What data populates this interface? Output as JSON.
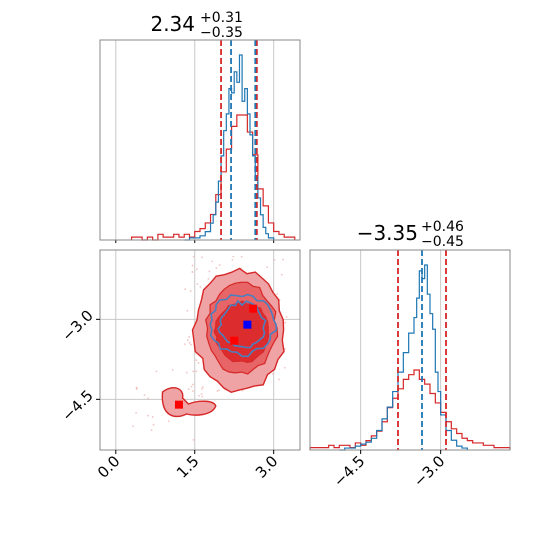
{
  "chart_data": [
    {
      "type": "histogram",
      "panel": "marginal-x",
      "title": {
        "value": "2.34",
        "plus": "+0.31",
        "minus": "−0.35"
      },
      "xlim": [
        -0.3,
        3.5
      ],
      "grid": true,
      "quantile_lines": {
        "blue": [
          2.19,
          2.65
        ],
        "red": [
          2.0,
          2.68
        ]
      },
      "series": [
        {
          "color": "#1f77b4",
          "bin_edges": [
            1.3,
            1.4,
            1.5,
            1.6,
            1.7,
            1.8,
            1.85,
            1.9,
            1.95,
            2.0,
            2.05,
            2.1,
            2.15,
            2.2,
            2.25,
            2.3,
            2.35,
            2.4,
            2.45,
            2.5,
            2.55,
            2.6,
            2.65,
            2.7,
            2.75,
            2.8,
            2.85,
            2.9,
            3.0
          ],
          "counts": [
            0,
            1,
            1,
            2,
            4,
            8,
            12,
            18,
            28,
            40,
            52,
            60,
            72,
            70,
            80,
            75,
            88,
            66,
            72,
            60,
            50,
            40,
            30,
            20,
            12,
            6,
            3,
            1
          ]
        },
        {
          "color": "#d62728",
          "bin_edges": [
            0.3,
            0.4,
            0.5,
            0.6,
            0.7,
            0.8,
            0.9,
            1.0,
            1.1,
            1.2,
            1.3,
            1.4,
            1.5,
            1.6,
            1.7,
            1.8,
            1.9,
            2.0,
            2.1,
            2.2,
            2.3,
            2.4,
            2.5,
            2.6,
            2.7,
            2.8,
            2.9,
            3.0,
            3.1,
            3.2,
            3.3,
            3.4
          ],
          "counts": [
            1,
            1,
            0,
            1,
            0,
            2,
            1,
            1,
            2,
            1,
            2,
            1,
            3,
            4,
            6,
            9,
            16,
            24,
            32,
            40,
            44,
            44,
            38,
            30,
            18,
            12,
            6,
            3,
            2,
            1,
            1
          ]
        }
      ]
    },
    {
      "type": "contour",
      "panel": "joint",
      "xlim": [
        -0.3,
        3.5
      ],
      "ylim": [
        -5.45,
        -1.7
      ],
      "xticks": [
        "0.0",
        "1.5",
        "3.0"
      ],
      "yticks": [
        "−3.0",
        "−4.5"
      ],
      "xtick_values": [
        0.0,
        1.5,
        3.0
      ],
      "ytick_values": [
        -3.0,
        -4.5
      ],
      "grid": true,
      "red_contour_levels": 3,
      "red_secondary_blob": {
        "x": [
          0.85,
          1.9
        ],
        "y": [
          -4.85,
          -4.25
        ]
      },
      "blue_contour_levels": 2,
      "points": [
        {
          "x": 2.5,
          "y": -3.1,
          "color": "#0000ff",
          "marker": "square"
        },
        {
          "x": 2.61,
          "y": -2.8,
          "color": "#ff0000",
          "marker": "square"
        },
        {
          "x": 2.25,
          "y": -3.4,
          "color": "#ff0000",
          "marker": "square"
        },
        {
          "x": 1.2,
          "y": -4.6,
          "color": "#ff0000",
          "marker": "square"
        }
      ]
    },
    {
      "type": "histogram",
      "panel": "marginal-y",
      "title": {
        "value": "−3.35",
        "plus": "+0.46",
        "minus": "−0.45"
      },
      "xlim": [
        -5.45,
        -1.7
      ],
      "xticks": [
        "−4.5",
        "−3.0"
      ],
      "xtick_values": [
        -4.5,
        -3.0
      ],
      "grid": true,
      "quantile_lines": {
        "blue": [
          -3.35
        ],
        "red": [
          -3.8,
          -2.9
        ]
      },
      "series": [
        {
          "color": "#1f77b4",
          "bin_edges": [
            -4.9,
            -4.8,
            -4.7,
            -4.6,
            -4.5,
            -4.4,
            -4.3,
            -4.2,
            -4.1,
            -4.0,
            -3.9,
            -3.8,
            -3.7,
            -3.6,
            -3.5,
            -3.45,
            -3.4,
            -3.35,
            -3.3,
            -3.25,
            -3.2,
            -3.15,
            -3.1,
            -3.05,
            -3.0,
            -2.9,
            -2.8,
            -2.7,
            -2.6,
            -2.5
          ],
          "counts": [
            0,
            1,
            1,
            2,
            3,
            4,
            6,
            10,
            16,
            22,
            30,
            40,
            50,
            60,
            68,
            78,
            92,
            88,
            95,
            80,
            70,
            62,
            40,
            30,
            18,
            10,
            5,
            2,
            1
          ]
        },
        {
          "color": "#d62728",
          "bin_edges": [
            -5.45,
            -5.3,
            -5.2,
            -5.1,
            -5.0,
            -4.9,
            -4.8,
            -4.7,
            -4.6,
            -4.5,
            -4.4,
            -4.3,
            -4.2,
            -4.1,
            -4.0,
            -3.9,
            -3.8,
            -3.7,
            -3.6,
            -3.5,
            -3.4,
            -3.3,
            -3.2,
            -3.1,
            -3.0,
            -2.9,
            -2.8,
            -2.7,
            -2.6,
            -2.5,
            -2.4,
            -2.3,
            -2.2,
            -2.1,
            -2.0,
            -1.9,
            -1.8,
            -1.7
          ],
          "counts": [
            1,
            1,
            1,
            2,
            1,
            2,
            2,
            1,
            3,
            2,
            4,
            6,
            8,
            12,
            18,
            22,
            26,
            30,
            32,
            34,
            30,
            28,
            24,
            20,
            16,
            12,
            9,
            7,
            5,
            4,
            3,
            3,
            2,
            2,
            1,
            1,
            1
          ]
        }
      ]
    }
  ]
}
